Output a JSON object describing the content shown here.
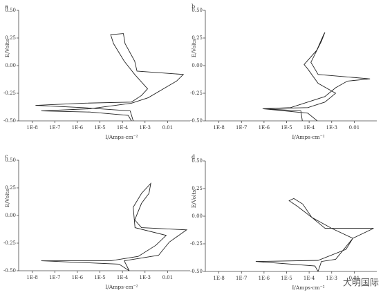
{
  "chart_data": [
    {
      "type": "line",
      "panel": "a",
      "ylabel": "E/Volts",
      "xlabel": "I/Amps·cm⁻²",
      "xscale": "log",
      "xlim": [
        2.5e-09,
        0.1
      ],
      "xticks": [
        {
          "value": 1e-08,
          "label": "1E-8"
        },
        {
          "value": 1e-07,
          "label": "1E-7"
        },
        {
          "value": 1e-06,
          "label": "1E-6"
        },
        {
          "value": 1e-05,
          "label": "1E-5"
        },
        {
          "value": 0.0001,
          "label": "1E-4"
        },
        {
          "value": 0.001,
          "label": "1E-3"
        },
        0.01
      ],
      "ylim": [
        -0.5,
        0.5
      ],
      "yticks": [
        {
          "value": -0.5,
          "label": "-0.50"
        },
        {
          "value": -0.25,
          "label": "-0.25"
        },
        {
          "value": 0,
          "label": "0.00"
        },
        {
          "value": 0.25,
          "label": "0.25"
        },
        {
          "value": 0.5,
          "label": "0.50"
        }
      ],
      "series": [
        {
          "color": "#222",
          "x": [
            0.0003,
            0.00022,
            1.8e-06,
            1.4e-08,
            1.8e-06,
            0.00025,
            0.0007,
            0.0013,
            0.00035,
            0.00012,
            4e-05,
            3e-05,
            0.00011,
            0.00013,
            0.00035,
            0.00044,
            0.05,
            0.025,
            0.0014,
            0.00025,
            3.6e-06,
            2.5e-08,
            3.6e-06,
            0.00018,
            0.00025
          ],
          "values": [
            -0.5,
            -0.41,
            -0.38,
            -0.36,
            -0.34,
            -0.33,
            -0.27,
            -0.21,
            -0.08,
            0.04,
            0.2,
            0.28,
            0.29,
            0.2,
            0.04,
            -0.05,
            -0.08,
            -0.14,
            -0.29,
            -0.34,
            -0.39,
            -0.41,
            -0.42,
            -0.45,
            -0.5
          ]
        }
      ]
    },
    {
      "type": "line",
      "panel": "b",
      "ylabel": "E/Volts",
      "xlabel": "I/Amps·cm⁻²",
      "xscale": "log",
      "xlim": [
        2.5e-09,
        0.1
      ],
      "xticks": [
        {
          "value": 1e-08,
          "label": "1E-8"
        },
        {
          "value": 1e-07,
          "label": "1E-7"
        },
        {
          "value": 1e-06,
          "label": "1E-6"
        },
        {
          "value": 1e-05,
          "label": "1E-5"
        },
        {
          "value": 0.0001,
          "label": "1E-4"
        },
        {
          "value": 0.001,
          "label": "1E-3"
        },
        0.01
      ],
      "ylim": [
        -0.5,
        0.5
      ],
      "yticks": [
        {
          "value": -0.5,
          "label": "-0.50"
        },
        {
          "value": -0.25,
          "label": "-0.25"
        },
        {
          "value": 0,
          "label": "0.00"
        },
        {
          "value": 0.25,
          "label": "0.25"
        },
        {
          "value": 0.5,
          "label": "0.50"
        }
      ],
      "series": [
        {
          "color": "#222",
          "x": [
            0.00023,
            8.7e-05,
            8.7e-07,
            8.7e-05,
            0.0005,
            0.0015,
            0.00025,
            8.7e-05,
            6e-05,
            0.00022,
            0.00044,
            0.0005,
            0.00035,
            0.00012,
            0.00018,
            0.00025,
            0.05,
            0.005,
            0.0015,
            0.0005,
            1.5e-05,
            8.7e-07,
            4.3e-05,
            5e-05
          ],
          "values": [
            -0.5,
            -0.43,
            -0.39,
            -0.38,
            -0.33,
            -0.25,
            -0.16,
            -0.03,
            0.01,
            0.14,
            0.28,
            0.3,
            0.22,
            0.03,
            -0.03,
            -0.08,
            -0.12,
            -0.14,
            -0.2,
            -0.28,
            -0.38,
            -0.39,
            -0.41,
            -0.5
          ]
        }
      ]
    },
    {
      "type": "line",
      "panel": "c",
      "ylabel": "E/Volts",
      "xlabel": "I/Amps·cm⁻²",
      "xscale": "log",
      "xlim": [
        2.5e-09,
        0.1
      ],
      "xticks": [
        {
          "value": 1e-08,
          "label": "1E-8"
        },
        {
          "value": 1e-07,
          "label": "1E-7"
        },
        {
          "value": 1e-06,
          "label": "1E-6"
        },
        {
          "value": 1e-05,
          "label": "1E-5"
        },
        {
          "value": 0.0001,
          "label": "1E-4"
        },
        {
          "value": 0.001,
          "label": "1E-3"
        },
        0.01
      ],
      "ylim": [
        -0.5,
        0.5
      ],
      "yticks": [
        {
          "value": -0.5,
          "label": "-0.50"
        },
        {
          "value": -0.25,
          "label": "-0.25"
        },
        {
          "value": 0,
          "label": "0.00"
        },
        {
          "value": 0.25,
          "label": "0.25"
        },
        {
          "value": 0.5,
          "label": "0.50"
        }
      ],
      "series": [
        {
          "color": "#222",
          "x": [
            0.0002,
            7e-05,
            2.5e-08,
            3e-05,
            0.0005,
            0.003,
            0.0087,
            0.00036,
            0.0003,
            0.0007,
            0.0018,
            0.0015,
            0.0007,
            0.00035,
            0.0007,
            0.07,
            0.012,
            0.004,
            0.00012,
            0.0002
          ],
          "values": [
            -0.5,
            -0.44,
            -0.41,
            -0.41,
            -0.37,
            -0.27,
            -0.18,
            -0.11,
            0.075,
            0.2,
            0.29,
            0.2,
            0.11,
            -0.04,
            -0.11,
            -0.13,
            -0.24,
            -0.36,
            -0.41,
            -0.5
          ]
        }
      ]
    },
    {
      "type": "line",
      "panel": "d",
      "ylabel": "E/Volts",
      "xlabel": "I/Amps·cm⁻²",
      "xscale": "log",
      "xlim": [
        2.5e-09,
        0.1
      ],
      "xticks": [
        {
          "value": 1e-08,
          "label": "1E-8"
        },
        {
          "value": 1e-07,
          "label": "1E-7"
        },
        {
          "value": 1e-06,
          "label": "1E-6"
        },
        {
          "value": 1e-05,
          "label": "1E-5"
        },
        {
          "value": 0.0001,
          "label": "1E-4"
        },
        {
          "value": 0.001,
          "label": "1E-3"
        },
        0.01
      ],
      "ylim": [
        -0.5,
        0.5
      ],
      "yticks": [
        {
          "value": -0.5,
          "label": "-0.50"
        },
        {
          "value": -0.25,
          "label": "-0.25"
        },
        {
          "value": 0,
          "label": "0.00"
        },
        {
          "value": 0.25,
          "label": "0.25"
        },
        {
          "value": 0.5,
          "label": "0.50"
        }
      ],
      "series": [
        {
          "color": "#222",
          "x": [
            0.00025,
            0.00018,
            4.3e-07,
            0.00025,
            0.0043,
            0.0087,
            0.001,
            0.00013,
            3e-05,
            1.3e-05,
            2.1e-05,
            5.2e-05,
            0.00013,
            0.00051,
            0.072,
            0.0087,
            0.0015,
            0.00035,
            0.00025
          ],
          "values": [
            -0.5,
            -0.45,
            -0.41,
            -0.4,
            -0.3,
            -0.2,
            -0.11,
            -0.01,
            0.09,
            0.14,
            0.16,
            0.11,
            -0.01,
            -0.11,
            -0.11,
            -0.2,
            -0.39,
            -0.41,
            -0.5
          ]
        }
      ]
    }
  ],
  "watermark": "大明国际"
}
